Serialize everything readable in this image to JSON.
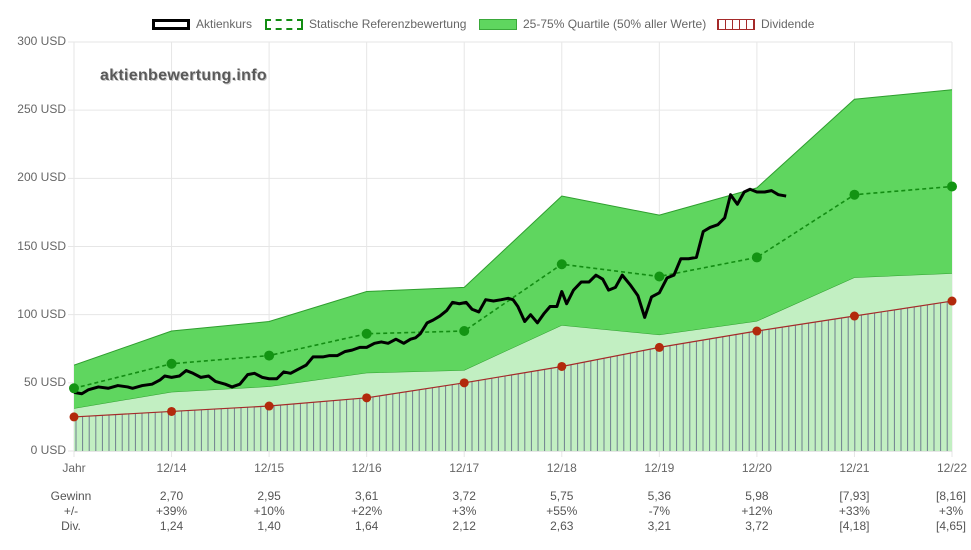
{
  "chart_data": {
    "type": "line",
    "watermark": "aktienbewertung.info",
    "legend": [
      {
        "name": "Aktienkurs",
        "style": "line",
        "color": "#000000"
      },
      {
        "name": "Statische Referenzbewertung",
        "style": "dashed",
        "color": "#138d13"
      },
      {
        "name": "25-75% Quartile (50% aller Werte)",
        "style": "area",
        "color": "#5fd65f"
      },
      {
        "name": "Dividende",
        "style": "hatch",
        "color": "#a52a2a"
      }
    ],
    "y_axis": {
      "min": 0,
      "max": 300,
      "unit": "USD",
      "ticks": [
        "0 USD",
        "50 USD",
        "100 USD",
        "150 USD",
        "200 USD",
        "250 USD",
        "300 USD"
      ],
      "tick_values": [
        0,
        50,
        100,
        150,
        200,
        250,
        300
      ]
    },
    "x_axis": {
      "labels": [
        "Jahr",
        "12/14",
        "12/15",
        "12/16",
        "12/17",
        "12/18",
        "12/19",
        "12/20",
        "12/21",
        "12/22"
      ],
      "positions": [
        0,
        1,
        2,
        3,
        4,
        5,
        6,
        7,
        8,
        9
      ]
    },
    "grid": true,
    "legend_position": "top",
    "colors": {
      "price": "#000000",
      "reference": "#138d13",
      "quartile_outer": "#5fd65f",
      "quartile_inner": "#c2efc2",
      "dividend": "#a52a2a",
      "grid": "#e6e6e6"
    },
    "quartile_upper": [
      [
        0,
        63
      ],
      [
        1,
        88
      ],
      [
        2,
        95
      ],
      [
        3,
        117
      ],
      [
        4,
        120
      ],
      [
        5,
        187
      ],
      [
        6,
        173
      ],
      [
        7,
        193
      ],
      [
        8,
        258
      ],
      [
        9,
        265
      ]
    ],
    "quartile_lower": [
      [
        0,
        31
      ],
      [
        1,
        43
      ],
      [
        2,
        47
      ],
      [
        3,
        57
      ],
      [
        4,
        59
      ],
      [
        5,
        92
      ],
      [
        6,
        85
      ],
      [
        7,
        95
      ],
      [
        8,
        127
      ],
      [
        9,
        130
      ]
    ],
    "reference": [
      [
        0,
        46
      ],
      [
        1,
        64
      ],
      [
        2,
        70
      ],
      [
        3,
        86
      ],
      [
        4,
        88
      ],
      [
        5,
        137
      ],
      [
        6,
        128
      ],
      [
        7,
        142
      ],
      [
        8,
        188
      ],
      [
        9,
        194
      ]
    ],
    "dividend": [
      [
        0,
        25
      ],
      [
        1,
        29
      ],
      [
        2,
        33
      ],
      [
        3,
        39
      ],
      [
        4,
        50
      ],
      [
        5,
        62
      ],
      [
        6,
        76
      ],
      [
        7,
        88
      ],
      [
        8,
        99
      ],
      [
        9,
        110
      ]
    ],
    "price": [
      [
        0.0,
        43
      ],
      [
        0.08,
        42
      ],
      [
        0.15,
        45
      ],
      [
        0.25,
        47
      ],
      [
        0.35,
        46
      ],
      [
        0.45,
        48
      ],
      [
        0.55,
        47
      ],
      [
        0.6,
        46
      ],
      [
        0.7,
        48
      ],
      [
        0.8,
        49
      ],
      [
        0.88,
        52
      ],
      [
        0.93,
        55
      ],
      [
        1.0,
        54
      ],
      [
        1.08,
        55
      ],
      [
        1.15,
        59
      ],
      [
        1.22,
        57
      ],
      [
        1.3,
        54
      ],
      [
        1.38,
        55
      ],
      [
        1.45,
        51
      ],
      [
        1.55,
        49
      ],
      [
        1.62,
        47
      ],
      [
        1.7,
        49
      ],
      [
        1.78,
        56
      ],
      [
        1.85,
        57
      ],
      [
        1.93,
        54
      ],
      [
        2.0,
        53
      ],
      [
        2.08,
        53
      ],
      [
        2.15,
        58
      ],
      [
        2.22,
        57
      ],
      [
        2.3,
        60
      ],
      [
        2.38,
        63
      ],
      [
        2.45,
        69
      ],
      [
        2.55,
        69
      ],
      [
        2.62,
        70
      ],
      [
        2.7,
        70
      ],
      [
        2.78,
        73
      ],
      [
        2.85,
        74
      ],
      [
        2.93,
        76
      ],
      [
        3.0,
        76
      ],
      [
        3.08,
        79
      ],
      [
        3.15,
        80
      ],
      [
        3.22,
        79
      ],
      [
        3.3,
        82
      ],
      [
        3.38,
        79
      ],
      [
        3.45,
        82
      ],
      [
        3.5,
        83
      ],
      [
        3.55,
        86
      ],
      [
        3.62,
        94
      ],
      [
        3.68,
        96
      ],
      [
        3.75,
        99
      ],
      [
        3.82,
        103
      ],
      [
        3.88,
        109
      ],
      [
        3.95,
        108
      ],
      [
        4.02,
        109
      ],
      [
        4.08,
        104
      ],
      [
        4.15,
        102
      ],
      [
        4.22,
        111
      ],
      [
        4.3,
        110
      ],
      [
        4.38,
        111
      ],
      [
        4.45,
        112
      ],
      [
        4.5,
        111
      ],
      [
        4.55,
        106
      ],
      [
        4.62,
        95
      ],
      [
        4.68,
        100
      ],
      [
        4.75,
        94
      ],
      [
        4.82,
        101
      ],
      [
        4.88,
        106
      ],
      [
        4.95,
        106
      ],
      [
        5.0,
        117
      ],
      [
        5.05,
        108
      ],
      [
        5.12,
        118
      ],
      [
        5.2,
        124
      ],
      [
        5.28,
        124
      ],
      [
        5.35,
        129
      ],
      [
        5.42,
        126
      ],
      [
        5.48,
        118
      ],
      [
        5.55,
        120
      ],
      [
        5.62,
        129
      ],
      [
        5.7,
        122
      ],
      [
        5.78,
        114
      ],
      [
        5.85,
        98
      ],
      [
        5.92,
        113
      ],
      [
        6.0,
        116
      ],
      [
        6.08,
        127
      ],
      [
        6.15,
        129
      ],
      [
        6.22,
        141
      ],
      [
        6.3,
        141
      ],
      [
        6.38,
        142
      ],
      [
        6.45,
        161
      ],
      [
        6.52,
        164
      ],
      [
        6.6,
        166
      ],
      [
        6.67,
        171
      ],
      [
        6.73,
        188
      ],
      [
        6.8,
        181
      ],
      [
        6.87,
        190
      ],
      [
        6.93,
        192
      ],
      [
        7.0,
        190
      ],
      [
        7.08,
        190
      ],
      [
        7.15,
        191
      ],
      [
        7.22,
        188
      ],
      [
        7.3,
        187
      ]
    ]
  },
  "table": {
    "rows": [
      {
        "label": "Gewinn",
        "values": [
          "2,70",
          "2,95",
          "3,61",
          "3,72",
          "5,75",
          "5,36",
          "5,98",
          "[7,93]",
          "[8,16]"
        ]
      },
      {
        "label": "+/-",
        "values": [
          "+39%",
          "+10%",
          "+22%",
          "+3%",
          "+55%",
          "-7%",
          "+12%",
          "+33%",
          "+3%"
        ]
      },
      {
        "label": "Div.",
        "values": [
          "1,24",
          "1,40",
          "1,64",
          "2,12",
          "2,63",
          "3,21",
          "3,72",
          "[4,18]",
          "[4,65]"
        ]
      }
    ]
  }
}
